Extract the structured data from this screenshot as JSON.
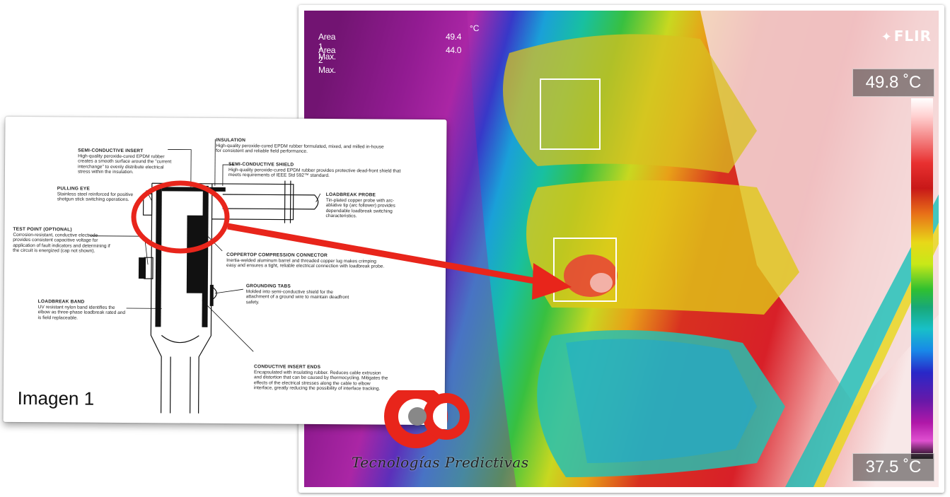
{
  "thermal": {
    "readouts": [
      {
        "label": "Area 1 Max.",
        "value": "49.4"
      },
      {
        "label": "Area 2 Max.",
        "value": "44.0"
      }
    ],
    "unit": "°C",
    "brand": "FLIR",
    "scale_max": "49.8 ˚C",
    "scale_min": "37.5 ˚C"
  },
  "datasheet": {
    "caption": "Imagen 1",
    "callouts": [
      {
        "title": "INSULATION",
        "desc": "High-quality peroxide-cured EPDM rubber formulated, mixed, and milled in-house for consistent and reliable field performance."
      },
      {
        "title": "SEMI-CONDUCTIVE INSERT",
        "desc": "High-quality peroxide-cured EPDM rubber creates a smooth surface around the \"current interchange\" to evenly distribute electrical stress within the insulation."
      },
      {
        "title": "SEMI-CONDUCTIVE SHIELD",
        "desc": "High-quality peroxide-cured EPDM rubber provides protective dead-front shield that meets requirements of IEEE Std 592™ standard."
      },
      {
        "title": "PULLING EYE",
        "desc": "Stainless steel reinforced for positive shotgun stick switching operations."
      },
      {
        "title": "LOADBREAK PROBE",
        "desc": "Tin-plated copper probe with arc-ablative tip (arc follower) provides dependable loadbreak switching characteristics."
      },
      {
        "title": "TEST POINT (OPTIONAL)",
        "desc": "Corrosion-resistant, conductive electrode provides consistent capacitive voltage for application of fault indicators and determining if the circuit is energized (cap not shown)."
      },
      {
        "title": "COPPERTOP COMPRESSION CONNECTOR",
        "desc": "Inertia-welded aluminum barrel and threaded copper lug makes crimping easy and ensures a tight, reliable electrical connection with loadbreak probe."
      },
      {
        "title": "GROUNDING TABS",
        "desc": "Molded into semi-conductive shield for the attachment of a ground wire to maintain deadfront safety."
      },
      {
        "title": "LOADBREAK BAND",
        "desc": "UV resistant nylon band identifies the elbow as three-phase loadbreak rated and is field replaceable."
      },
      {
        "title": "CONDUCTIVE INSERT ENDS",
        "desc": "Encapsulated with insulating rubber. Reduces cable extrusion and distortion that can be caused by thermocycling. Mitigates the effects of the electrical stresses along the cable to elbow interface, greatly reducing the possibility of interface tracking."
      }
    ]
  },
  "logo": {
    "text": "Tecnologías Predictivas"
  },
  "colors": {
    "highlight": "#e8251b",
    "arrow": "#e8251b"
  }
}
